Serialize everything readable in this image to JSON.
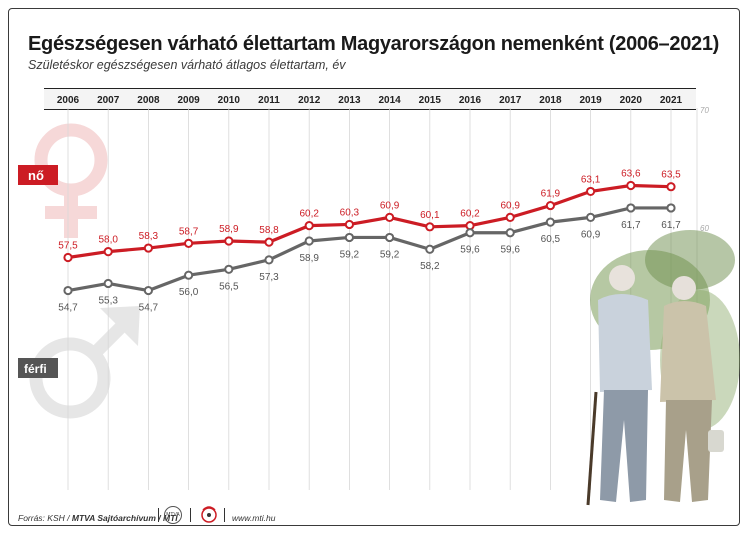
{
  "header": {
    "title": "Egészségesen várható élettartam Magyarországon nemenként (2006–2021)",
    "subtitle": "Születéskor egészségesen várható átlagos élettartam, év"
  },
  "footer": {
    "source": "Forrás: KSH /",
    "archive": "MTVA Sajtóarchívum / MTI",
    "logo_mtva": "MTVA",
    "website": "www.mti.hu"
  },
  "colors": {
    "female": "#cc1c24",
    "male": "#666666",
    "female_symbol": "#f6d8d8",
    "male_symbol": "#e6e6e6"
  },
  "icons": [
    "female-symbol-icon",
    "male-symbol-icon",
    "mtva-logo-icon",
    "mti-logo-icon"
  ],
  "chart_data": {
    "type": "line",
    "title": "Egészségesen várható élettartam Magyarországon nemenként (2006–2021)",
    "subtitle": "Születéskor egészségesen várható átlagos élettartam, év",
    "x": [
      "2006",
      "2007",
      "2008",
      "2009",
      "2010",
      "2011",
      "2012",
      "2013",
      "2014",
      "2015",
      "2016",
      "2017",
      "2018",
      "2019",
      "2020",
      "2021"
    ],
    "series": [
      {
        "name": "nő",
        "values": [
          57.5,
          58.0,
          58.3,
          58.7,
          58.9,
          58.8,
          60.2,
          60.3,
          60.9,
          60.1,
          60.2,
          60.9,
          61.9,
          63.1,
          63.6,
          63.5
        ]
      },
      {
        "name": "férfi",
        "values": [
          54.7,
          55.3,
          54.7,
          56.0,
          56.5,
          57.3,
          58.9,
          59.2,
          59.2,
          58.2,
          59.6,
          59.6,
          60.5,
          60.9,
          61.7,
          61.7
        ]
      }
    ],
    "value_labels": {
      "nő": [
        "57,5",
        "58,0",
        "58,3",
        "58,7",
        "58,9",
        "58,8",
        "60,2",
        "60,3",
        "60,9",
        "60,1",
        "60,2",
        "60,9",
        "61,9",
        "63,1",
        "63,6",
        "63,5"
      ],
      "férfi": [
        "54,7",
        "55,3",
        "54,7",
        "56,0",
        "56,5",
        "57,3",
        "58,9",
        "59,2",
        "59,2",
        "58,2",
        "59,6",
        "59,6",
        "60,5",
        "60,9",
        "61,7",
        "61,7"
      ]
    },
    "y_ticks": [
      "70",
      "60"
    ],
    "y_tick_values": [
      70,
      60
    ],
    "ylim": [
      53,
      71
    ],
    "grid": "vertical",
    "legend": "left, next to lines"
  }
}
